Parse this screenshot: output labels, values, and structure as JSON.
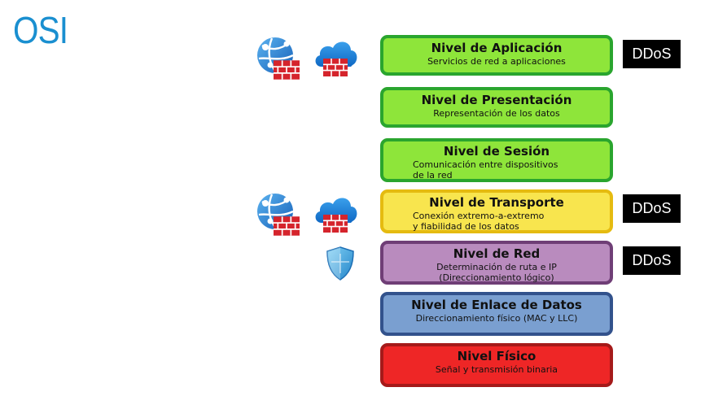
{
  "title": "OSI",
  "layers": [
    {
      "title": "Nivel de Aplicación",
      "desc": "Servicios de red a aplicaciones",
      "color": "#8ee53a"
    },
    {
      "title": "Nivel de Presentación",
      "desc": "Representación de los datos",
      "color": "#8ee53a"
    },
    {
      "title": "Nivel de Sesión",
      "desc_lines": [
        "Comunicación entre dispositivos",
        "de la red"
      ],
      "color": "#8ee53a"
    },
    {
      "title": "Nivel de Transporte",
      "desc_lines": [
        "Conexión extremo-a-extremo",
        "y fiabilidad de los datos"
      ],
      "color": "#f8e54e"
    },
    {
      "title": "Nivel de Red",
      "desc_lines": [
        "Determinación de ruta e IP",
        "(Direccionamiento lógico)"
      ],
      "color": "#b98bbe"
    },
    {
      "title": "Nivel de Enlace de Datos",
      "desc": "Direccionamiento físico (MAC y LLC)",
      "color": "#7a9fd0"
    },
    {
      "title": "Nivel Físico",
      "desc": "Señal y transmisión binaria",
      "color": "#ee2626"
    }
  ],
  "badges": {
    "aplicacion": "DDoS",
    "transporte": "DDoS",
    "red": "DDoS"
  },
  "icons": [
    "web-firewall-icon",
    "cloud-firewall-icon",
    "shield-icon"
  ],
  "colors": {
    "title": "#1a8fd0",
    "firewall": "#d5242c",
    "azure_blue": "#1d84d6"
  }
}
